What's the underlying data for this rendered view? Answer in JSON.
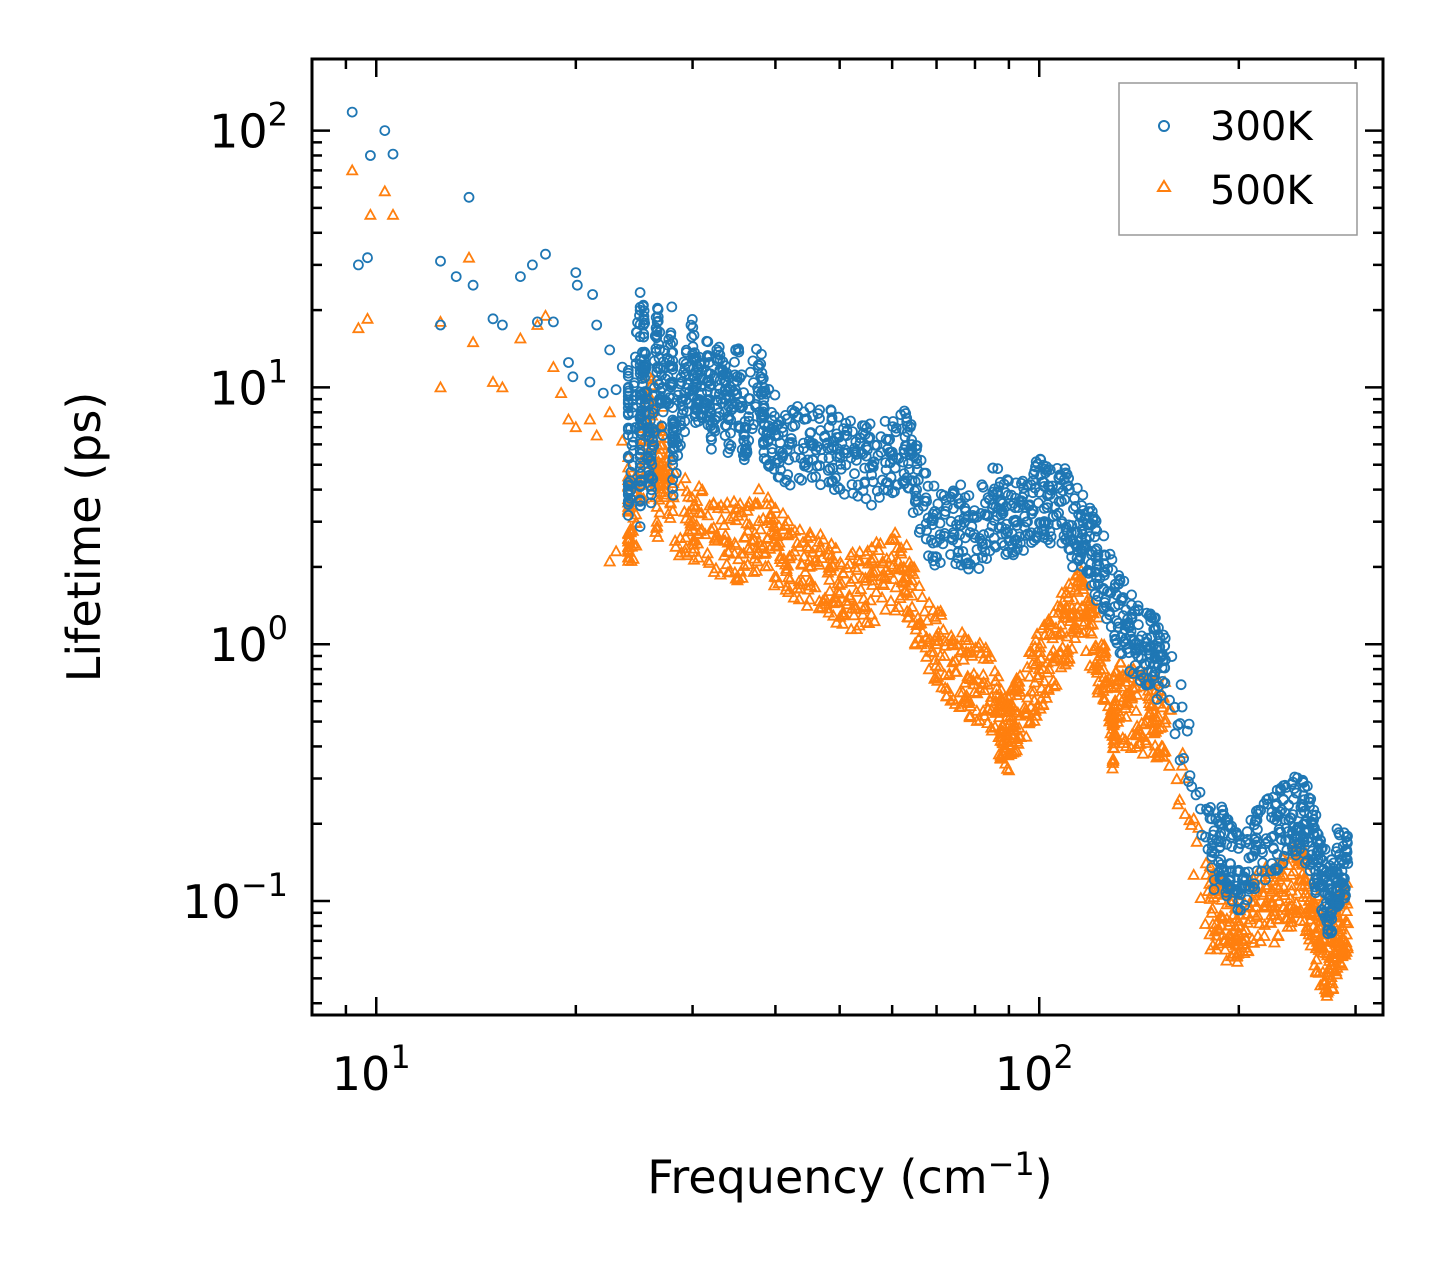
{
  "chart_data": {
    "type": "scatter",
    "title": "",
    "xlabel": "Frequency (cm",
    "xlabel_sup": "−1",
    "xlabel_end": ")",
    "ylabel": "Lifetime (ps)",
    "xscale": "log",
    "yscale": "log",
    "xlim": [
      8.0,
      330
    ],
    "ylim": [
      0.036,
      190
    ],
    "x_ticks": [
      {
        "base": "10",
        "exp": "1",
        "value": 10
      },
      {
        "base": "10",
        "exp": "2",
        "value": 100
      }
    ],
    "y_ticks": [
      {
        "base": "10",
        "exp": "2",
        "value": 100
      },
      {
        "base": "10",
        "exp": "1",
        "value": 10
      },
      {
        "base": "10",
        "exp": "0",
        "value": 1
      },
      {
        "base": "10",
        "exp": "−1",
        "value": 0.1
      }
    ],
    "legend": {
      "position": "top-right",
      "entries": [
        "300K",
        "500K"
      ]
    },
    "series": [
      {
        "name": "300K",
        "color": "#1f77b4",
        "marker": "circle",
        "points": [
          [
            9.2,
            118
          ],
          [
            9.8,
            80
          ],
          [
            10.3,
            100
          ],
          [
            10.6,
            81
          ],
          [
            9.4,
            30
          ],
          [
            9.7,
            32
          ],
          [
            12.5,
            31
          ],
          [
            13.2,
            27
          ],
          [
            13.8,
            55
          ],
          [
            14.0,
            25
          ],
          [
            12.5,
            17.5
          ],
          [
            15.0,
            18.5
          ],
          [
            15.5,
            17.5
          ],
          [
            16.5,
            27
          ],
          [
            17.2,
            30
          ],
          [
            18.0,
            33
          ],
          [
            17.5,
            18
          ],
          [
            18.5,
            18
          ],
          [
            20.0,
            28
          ],
          [
            20.1,
            25
          ],
          [
            21.2,
            23
          ],
          [
            21.5,
            17.5
          ],
          [
            22.5,
            14
          ],
          [
            23.5,
            12
          ],
          [
            25.0,
            20
          ],
          [
            25.3,
            17.5
          ],
          [
            26.5,
            16
          ],
          [
            28.0,
            15
          ],
          [
            30.0,
            13.5
          ],
          [
            31.5,
            11.5
          ],
          [
            33.0,
            11.5
          ],
          [
            35.0,
            11
          ],
          [
            38.0,
            11
          ],
          [
            19.5,
            12.5
          ],
          [
            19.8,
            11
          ],
          [
            21.0,
            10.5
          ],
          [
            22.0,
            9.5
          ],
          [
            23.0,
            9.8
          ],
          [
            24.0,
            9.5
          ],
          [
            25.5,
            9.0
          ],
          [
            27.0,
            8.8
          ],
          [
            29.0,
            8.5
          ],
          [
            30.5,
            9.0
          ],
          [
            32.0,
            8.0
          ],
          [
            34.0,
            7.5
          ],
          [
            36.0,
            7.0
          ],
          [
            38.5,
            7.2
          ],
          [
            40.0,
            6.5
          ],
          [
            42.0,
            6.0
          ],
          [
            45.0,
            6.2
          ],
          [
            48.0,
            5.8
          ],
          [
            50.0,
            5.5
          ],
          [
            53.0,
            5.2
          ],
          [
            56.0,
            5.0
          ],
          [
            60.0,
            5.6
          ],
          [
            63.0,
            5.9
          ],
          [
            25.0,
            3.6
          ],
          [
            24.0,
            3.5
          ],
          [
            26.0,
            4.5
          ],
          [
            28.0,
            5.0
          ],
          [
            65.0,
            4.3
          ],
          [
            68.0,
            3.1
          ],
          [
            72.0,
            2.7
          ],
          [
            76.0,
            2.9
          ],
          [
            80.0,
            2.6
          ],
          [
            85.0,
            3.4
          ],
          [
            88.0,
            3.3
          ],
          [
            92.0,
            3.0
          ],
          [
            96.0,
            3.0
          ],
          [
            100.0,
            3.9
          ],
          [
            103.0,
            3.5
          ],
          [
            108.0,
            3.6
          ],
          [
            112.0,
            2.9
          ],
          [
            116.0,
            2.8
          ],
          [
            120.0,
            2.3
          ],
          [
            125.0,
            1.9
          ],
          [
            130.0,
            1.4
          ],
          [
            135.0,
            1.2
          ],
          [
            140.0,
            1.0
          ],
          [
            146.0,
            0.95
          ],
          [
            150.0,
            0.88
          ],
          [
            155.0,
            0.87
          ],
          [
            182.0,
            0.155
          ],
          [
            188.0,
            0.17
          ],
          [
            194.0,
            0.14
          ],
          [
            200.0,
            0.13
          ],
          [
            210.0,
            0.15
          ],
          [
            220.0,
            0.175
          ],
          [
            230.0,
            0.19
          ],
          [
            240.0,
            0.21
          ],
          [
            248.0,
            0.22
          ],
          [
            255.0,
            0.19
          ],
          [
            262.0,
            0.15
          ],
          [
            268.0,
            0.12
          ],
          [
            274.0,
            0.095
          ],
          [
            280.0,
            0.13
          ],
          [
            286.0,
            0.145
          ],
          [
            292.0,
            0.14
          ]
        ]
      },
      {
        "name": "500K",
        "color": "#ff7f0e",
        "marker": "triangle",
        "points": [
          [
            9.2,
            70
          ],
          [
            9.8,
            47
          ],
          [
            10.3,
            58
          ],
          [
            10.6,
            47
          ],
          [
            9.4,
            17
          ],
          [
            9.7,
            18.5
          ],
          [
            12.5,
            18
          ],
          [
            12.5,
            10
          ],
          [
            13.8,
            32
          ],
          [
            14.0,
            15
          ],
          [
            15.0,
            10.5
          ],
          [
            15.5,
            10
          ],
          [
            16.5,
            15.5
          ],
          [
            17.5,
            17.5
          ],
          [
            18.0,
            19
          ],
          [
            18.5,
            12
          ],
          [
            19.0,
            9.5
          ],
          [
            19.5,
            7.5
          ],
          [
            20.0,
            7.0
          ],
          [
            21.0,
            7.5
          ],
          [
            21.5,
            6.5
          ],
          [
            22.5,
            8.0
          ],
          [
            23.5,
            6.2
          ],
          [
            24.0,
            4.5
          ],
          [
            25.0,
            4.2
          ],
          [
            26.0,
            9.0
          ],
          [
            27.0,
            6.0
          ],
          [
            22.5,
            2.1
          ],
          [
            23.0,
            2.3
          ],
          [
            24.0,
            2.4
          ],
          [
            26.5,
            3.0
          ],
          [
            28.0,
            3.3
          ],
          [
            30.0,
            3.0
          ],
          [
            32.0,
            2.8
          ],
          [
            34.0,
            2.5
          ],
          [
            36.0,
            2.6
          ],
          [
            38.0,
            2.8
          ],
          [
            40.0,
            2.4
          ],
          [
            42.0,
            2.2
          ],
          [
            45.0,
            2.0
          ],
          [
            48.0,
            1.9
          ],
          [
            50.0,
            1.7
          ],
          [
            53.0,
            1.6
          ],
          [
            56.0,
            1.7
          ],
          [
            60.0,
            2.0
          ],
          [
            63.0,
            1.8
          ],
          [
            66.0,
            1.2
          ],
          [
            70.0,
            1.0
          ],
          [
            74.0,
            0.85
          ],
          [
            78.0,
            0.75
          ],
          [
            82.0,
            0.7
          ],
          [
            86.0,
            0.6
          ],
          [
            88.0,
            0.48
          ],
          [
            90.0,
            0.46
          ],
          [
            92.0,
            0.55
          ],
          [
            96.0,
            0.62
          ],
          [
            100.0,
            0.8
          ],
          [
            104.0,
            0.9
          ],
          [
            108.0,
            1.1
          ],
          [
            112.0,
            1.3
          ],
          [
            116.0,
            1.4
          ],
          [
            120.0,
            1.1
          ],
          [
            125.0,
            0.8
          ],
          [
            130.0,
            0.6
          ],
          [
            135.0,
            0.58
          ],
          [
            140.0,
            0.55
          ],
          [
            146.0,
            0.53
          ],
          [
            150.0,
            0.52
          ],
          [
            155.0,
            0.51
          ],
          [
            129.0,
            0.44
          ],
          [
            182.0,
            0.09
          ],
          [
            188.0,
            0.087
          ],
          [
            194.0,
            0.083
          ],
          [
            200.0,
            0.08
          ],
          [
            210.0,
            0.09
          ],
          [
            220.0,
            0.096
          ],
          [
            230.0,
            0.1
          ],
          [
            240.0,
            0.115
          ],
          [
            248.0,
            0.12
          ],
          [
            255.0,
            0.1
          ],
          [
            262.0,
            0.075
          ],
          [
            268.0,
            0.063
          ],
          [
            274.0,
            0.06
          ],
          [
            280.0,
            0.07
          ],
          [
            286.0,
            0.08
          ],
          [
            292.0,
            0.082
          ]
        ]
      }
    ]
  }
}
